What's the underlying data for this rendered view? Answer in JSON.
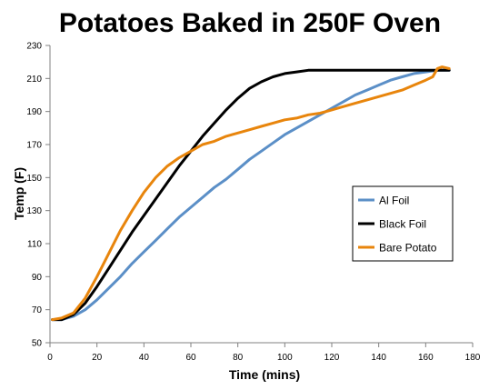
{
  "chart_data": {
    "type": "line",
    "title": "Potatoes Baked in 250F Oven",
    "xlabel": "Time (mins)",
    "ylabel": "Temp (F)",
    "xlim": [
      0,
      180
    ],
    "ylim": [
      50,
      230
    ],
    "xticks": [
      0,
      20,
      40,
      60,
      80,
      100,
      120,
      140,
      160,
      180
    ],
    "yticks": [
      50,
      70,
      90,
      110,
      130,
      150,
      170,
      190,
      210,
      230
    ],
    "grid": false,
    "legend": "right",
    "series": [
      {
        "name": "Al Foil",
        "color": "#5b8fc7",
        "x": [
          1,
          5,
          10,
          15,
          20,
          25,
          30,
          35,
          40,
          45,
          50,
          55,
          60,
          65,
          70,
          75,
          80,
          85,
          90,
          95,
          100,
          105,
          110,
          115,
          120,
          125,
          130,
          135,
          140,
          145,
          150,
          155,
          160,
          165,
          170
        ],
        "y": [
          64,
          64,
          66,
          70,
          76,
          83,
          90,
          98,
          105,
          112,
          119,
          126,
          132,
          138,
          144,
          149,
          155,
          161,
          166,
          171,
          176,
          180,
          184,
          188,
          192,
          196,
          200,
          203,
          206,
          209,
          211,
          213,
          214,
          215,
          215
        ]
      },
      {
        "name": "Black Foil",
        "color": "#000000",
        "x": [
          1,
          5,
          10,
          15,
          20,
          25,
          30,
          35,
          40,
          45,
          50,
          55,
          60,
          65,
          70,
          75,
          80,
          85,
          90,
          95,
          100,
          105,
          110,
          115,
          120,
          130,
          140,
          150,
          160,
          170
        ],
        "y": [
          64,
          64,
          67,
          74,
          84,
          95,
          106,
          117,
          127,
          137,
          147,
          157,
          166,
          175,
          183,
          191,
          198,
          204,
          208,
          211,
          213,
          214,
          215,
          215,
          215,
          215,
          215,
          215,
          215,
          215
        ]
      },
      {
        "name": "Bare Potato",
        "color": "#e8850c",
        "x": [
          1,
          5,
          10,
          15,
          20,
          25,
          30,
          35,
          40,
          45,
          50,
          55,
          60,
          65,
          70,
          75,
          80,
          85,
          90,
          95,
          100,
          105,
          110,
          115,
          120,
          125,
          130,
          135,
          140,
          145,
          150,
          155,
          160,
          163,
          165,
          167,
          170
        ],
        "y": [
          64,
          65,
          68,
          77,
          90,
          104,
          118,
          130,
          141,
          150,
          157,
          162,
          166,
          170,
          172,
          175,
          177,
          179,
          181,
          183,
          185,
          186,
          188,
          189,
          191,
          193,
          195,
          197,
          199,
          201,
          203,
          206,
          209,
          211,
          216,
          217,
          216
        ]
      }
    ]
  }
}
